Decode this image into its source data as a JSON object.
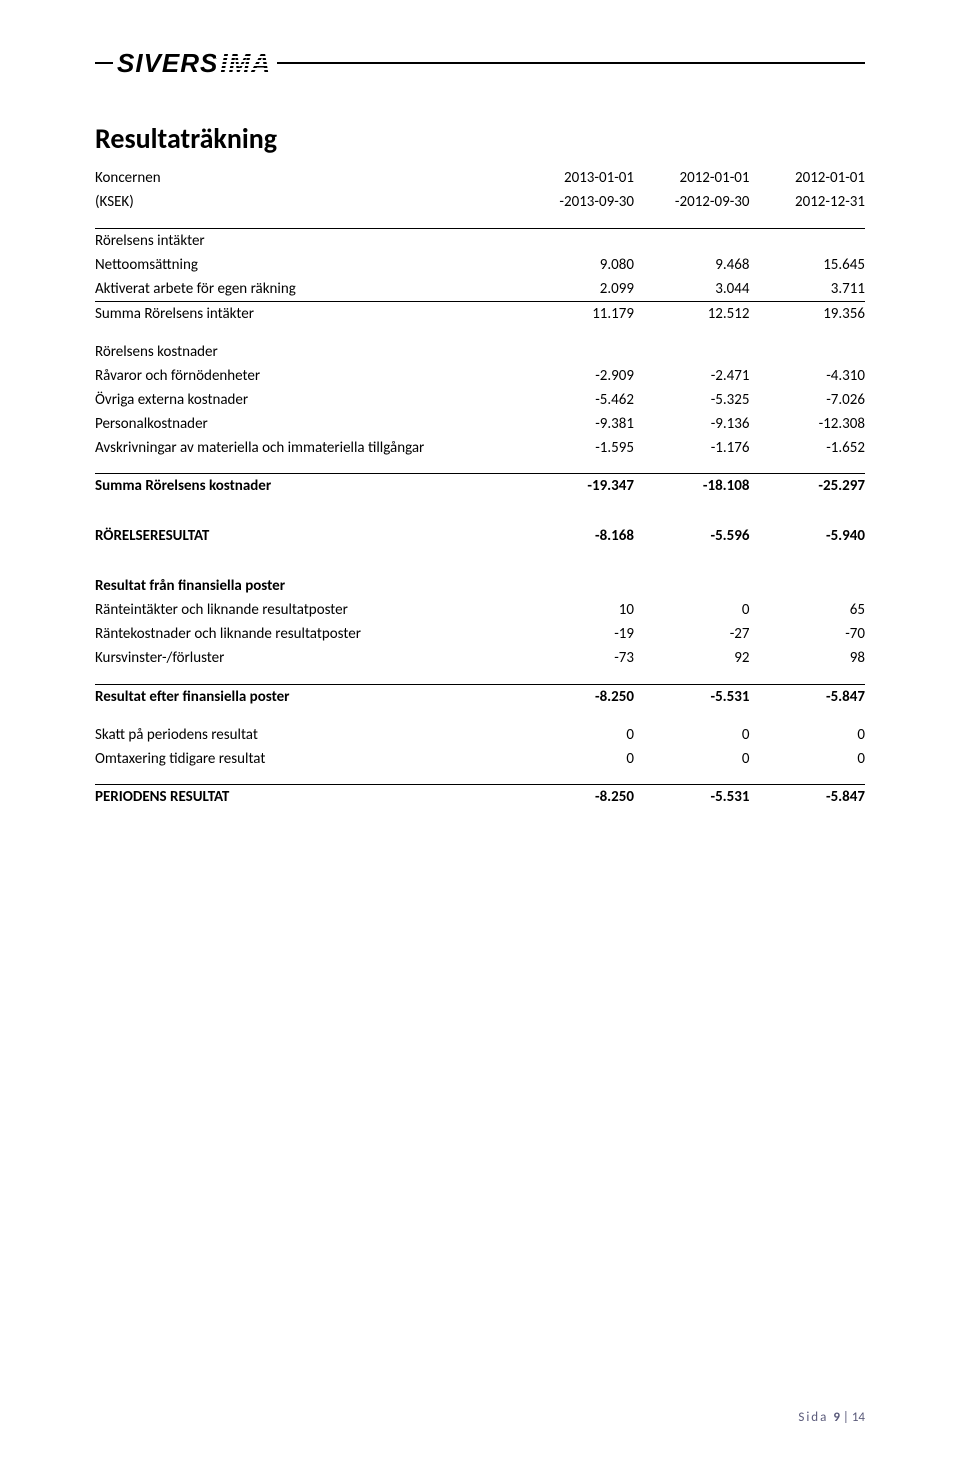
{
  "logo": {
    "text_main": "SIVERS",
    "text_suffix": "IMA"
  },
  "title": "Resultaträkning",
  "columns": {
    "c1_top": "2013-01-01",
    "c1_bot": "-2013-09-30",
    "c2_top": "2012-01-01",
    "c2_bot": "-2012-09-30",
    "c3_top": "2012-01-01",
    "c3_bot": "2012-12-31"
  },
  "header_rows": {
    "entity": "Koncernen",
    "unit": "(KSEK)"
  },
  "sections": {
    "revenue_heading": "Rörelsens intäkter",
    "nettoomsattning": {
      "label": "Nettoomsättning",
      "c1": "9.080",
      "c2": "9.468",
      "c3": "15.645"
    },
    "aktiverat": {
      "label": "Aktiverat arbete för egen räkning",
      "c1": "2.099",
      "c2": "3.044",
      "c3": "3.711"
    },
    "sum_revenue": {
      "label": "Summa Rörelsens intäkter",
      "c1": "11.179",
      "c2": "12.512",
      "c3": "19.356"
    },
    "cost_heading": "Rörelsens kostnader",
    "ravaror": {
      "label": "Råvaror och förnödenheter",
      "c1": "-2.909",
      "c2": "-2.471",
      "c3": "-4.310"
    },
    "ovriga": {
      "label": "Övriga externa kostnader",
      "c1": "-5.462",
      "c2": "-5.325",
      "c3": "-7.026"
    },
    "personal": {
      "label": "Personalkostnader",
      "c1": "-9.381",
      "c2": "-9.136",
      "c3": "-12.308"
    },
    "avskriv": {
      "label": "Avskrivningar av materiella och immateriella tillgångar",
      "c1": "-1.595",
      "c2": "-1.176",
      "c3": "-1.652"
    },
    "sum_cost": {
      "label": "Summa Rörelsens kostnader",
      "c1": "-19.347",
      "c2": "-18.108",
      "c3": "-25.297"
    },
    "oper_result": {
      "label": "RÖRELSERESULTAT",
      "c1": "-8.168",
      "c2": "-5.596",
      "c3": "-5.940"
    },
    "fin_heading": "Resultat från finansiella poster",
    "rante_in": {
      "label": "Ränteintäkter och liknande resultatposter",
      "c1": "10",
      "c2": "0",
      "c3": "65"
    },
    "rante_kost": {
      "label": "Räntekostnader och liknande resultatposter",
      "c1": "-19",
      "c2": "-27",
      "c3": "-70"
    },
    "kurs": {
      "label": "Kursvinster-/förluster",
      "c1": "-73",
      "c2": "92",
      "c3": "98"
    },
    "res_fin": {
      "label": "Resultat efter finansiella poster",
      "c1": "-8.250",
      "c2": "-5.531",
      "c3": "-5.847"
    },
    "skatt": {
      "label": "Skatt på periodens resultat",
      "c1": "0",
      "c2": "0",
      "c3": "0"
    },
    "omtax": {
      "label": "Omtaxering tidigare resultat",
      "c1": "0",
      "c2": "0",
      "c3": "0"
    },
    "period_result": {
      "label": "PERIODENS RESULTAT",
      "c1": "-8.250",
      "c2": "-5.531",
      "c3": "-5.847"
    }
  },
  "footer": {
    "word": "Sida",
    "current": "9",
    "sep": "|",
    "total": "14"
  },
  "styles": {
    "body_fontsize": 15,
    "title_fontsize": 28,
    "text_color": "#000000",
    "rule_color": "#000000",
    "footer_color": "#5a5a7a",
    "background": "#ffffff"
  }
}
